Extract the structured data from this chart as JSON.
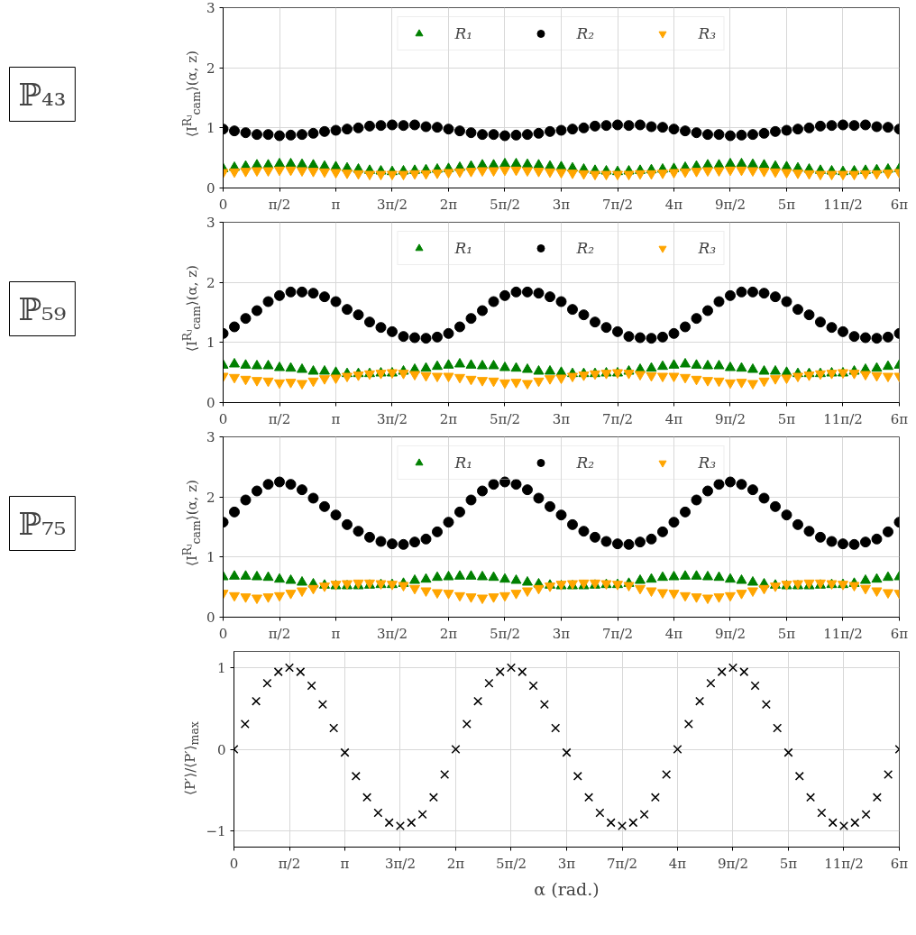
{
  "chart_data": [
    {
      "type": "scatter",
      "annotations": [
        "ℙ₄₃"
      ],
      "ylabel": "⟨I$^{Rⱼ}$$_{cam}$⟩(α, z)",
      "grid": true,
      "legend": "top",
      "xlim": [
        0,
        18.85
      ],
      "ylim": [
        0,
        3
      ],
      "yticks": [
        0,
        1,
        2,
        3
      ],
      "xticks": [
        0,
        {
          "value": 1.571,
          "label": "π/2"
        },
        {
          "value": 3.142,
          "label": "π"
        },
        {
          "value": 4.712,
          "label": "3π/2"
        },
        {
          "value": 6.283,
          "label": "2π"
        },
        {
          "value": 7.854,
          "label": "5π/2"
        },
        {
          "value": 9.425,
          "label": "3π"
        },
        {
          "value": 10.996,
          "label": "7π/2"
        },
        {
          "value": 12.566,
          "label": "4π"
        },
        {
          "value": 14.137,
          "label": "9π/2"
        },
        {
          "value": 15.708,
          "label": "5π"
        },
        {
          "value": 17.279,
          "label": "11π/2"
        },
        {
          "value": 18.85,
          "label": "6π"
        }
      ],
      "x": [
        0,
        0.314,
        0.628,
        0.942,
        1.257,
        1.571,
        1.885,
        2.199,
        2.513,
        2.827,
        3.142,
        3.456,
        3.77,
        4.084,
        4.398,
        4.712,
        5.027,
        5.341,
        5.655,
        5.969,
        6.283,
        6.597,
        6.912,
        7.226,
        7.54,
        7.854,
        8.168,
        8.482,
        8.796,
        9.111,
        9.425,
        9.739,
        10.053,
        10.367,
        10.681,
        10.996,
        11.31,
        11.624,
        11.938,
        12.252,
        12.566,
        12.881,
        13.195,
        13.509,
        13.823,
        14.137,
        14.451,
        14.765,
        15.08,
        15.394,
        15.708,
        16.022,
        16.336,
        16.65,
        16.965,
        17.279,
        17.593,
        17.907,
        18.221,
        18.535,
        18.85
      ],
      "series": [
        {
          "name": "R₁",
          "color": "#008000",
          "marker": "triangle",
          "values": [
            0.32,
            0.34,
            0.36,
            0.38,
            0.38,
            0.4,
            0.4,
            0.39,
            0.38,
            0.36,
            0.35,
            0.33,
            0.31,
            0.29,
            0.28,
            0.27,
            0.28,
            0.29,
            0.3,
            0.31,
            0.32,
            0.34,
            0.36,
            0.38,
            0.38,
            0.4,
            0.4,
            0.39,
            0.38,
            0.36,
            0.35,
            0.33,
            0.31,
            0.29,
            0.28,
            0.27,
            0.28,
            0.29,
            0.3,
            0.31,
            0.32,
            0.34,
            0.36,
            0.38,
            0.38,
            0.4,
            0.4,
            0.39,
            0.38,
            0.36,
            0.35,
            0.33,
            0.31,
            0.29,
            0.28,
            0.27,
            0.28,
            0.29,
            0.3,
            0.31,
            0.32
          ]
        },
        {
          "name": "R₂",
          "color": "#000000",
          "marker": "circle",
          "values": [
            0.98,
            0.95,
            0.92,
            0.89,
            0.89,
            0.87,
            0.88,
            0.89,
            0.91,
            0.94,
            0.96,
            0.98,
            1.0,
            1.03,
            1.04,
            1.05,
            1.04,
            1.05,
            1.02,
            1.01,
            0.98,
            0.95,
            0.92,
            0.89,
            0.89,
            0.87,
            0.88,
            0.89,
            0.91,
            0.94,
            0.96,
            0.98,
            1.0,
            1.03,
            1.04,
            1.05,
            1.04,
            1.05,
            1.02,
            1.01,
            0.98,
            0.95,
            0.92,
            0.89,
            0.89,
            0.87,
            0.88,
            0.89,
            0.91,
            0.94,
            0.96,
            0.98,
            1.0,
            1.03,
            1.04,
            1.05,
            1.04,
            1.05,
            1.02,
            1.01,
            0.98
          ]
        },
        {
          "name": "R₃",
          "color": "#ffa500",
          "values": [
            0.26,
            0.27,
            0.28,
            0.29,
            0.29,
            0.3,
            0.3,
            0.29,
            0.28,
            0.27,
            0.26,
            0.25,
            0.24,
            0.23,
            0.23,
            0.23,
            0.23,
            0.24,
            0.24,
            0.25,
            0.26,
            0.27,
            0.28,
            0.29,
            0.29,
            0.3,
            0.3,
            0.29,
            0.28,
            0.27,
            0.26,
            0.25,
            0.24,
            0.23,
            0.23,
            0.23,
            0.23,
            0.24,
            0.24,
            0.25,
            0.26,
            0.27,
            0.28,
            0.29,
            0.29,
            0.3,
            0.3,
            0.29,
            0.28,
            0.27,
            0.26,
            0.25,
            0.24,
            0.23,
            0.23,
            0.23,
            0.23,
            0.24,
            0.24,
            0.25,
            0.26
          ]
        }
      ]
    },
    {
      "type": "scatter",
      "annotations": [
        "ℙ₅₉"
      ],
      "ylabel": "⟨I$^{Rⱼ}$$_{cam}$⟩(α, z)",
      "grid": true,
      "legend": "top",
      "xlim": [
        0,
        18.85
      ],
      "ylim": [
        0,
        3
      ],
      "yticks": [
        0,
        1,
        2,
        3
      ],
      "xticks": [
        0,
        {
          "value": 1.571,
          "label": "π/2"
        },
        {
          "value": 3.142,
          "label": "π"
        },
        {
          "value": 4.712,
          "label": "3π/2"
        },
        {
          "value": 6.283,
          "label": "2π"
        },
        {
          "value": 7.854,
          "label": "5π/2"
        },
        {
          "value": 9.425,
          "label": "3π"
        },
        {
          "value": 10.996,
          "label": "7π/2"
        },
        {
          "value": 12.566,
          "label": "4π"
        },
        {
          "value": 14.137,
          "label": "9π/2"
        },
        {
          "value": 15.708,
          "label": "5π"
        },
        {
          "value": 17.279,
          "label": "11π/2"
        },
        {
          "value": 18.85,
          "label": "6π"
        }
      ],
      "x": [
        0,
        0.314,
        0.628,
        0.942,
        1.257,
        1.571,
        1.885,
        2.199,
        2.513,
        2.827,
        3.142,
        3.456,
        3.77,
        4.084,
        4.398,
        4.712,
        5.027,
        5.341,
        5.655,
        5.969,
        6.283,
        6.597,
        6.912,
        7.226,
        7.54,
        7.854,
        8.168,
        8.482,
        8.796,
        9.111,
        9.425,
        9.739,
        10.053,
        10.367,
        10.681,
        10.996,
        11.31,
        11.624,
        11.938,
        12.252,
        12.566,
        12.881,
        13.195,
        13.509,
        13.823,
        14.137,
        14.451,
        14.765,
        15.08,
        15.394,
        15.708,
        16.022,
        16.336,
        16.65,
        16.965,
        17.279,
        17.593,
        17.907,
        18.221,
        18.535,
        18.85
      ],
      "series": [
        {
          "name": "R₁",
          "color": "#008000",
          "marker": "triangle",
          "values": [
            0.62,
            0.64,
            0.62,
            0.61,
            0.61,
            0.58,
            0.57,
            0.55,
            0.52,
            0.52,
            0.5,
            0.48,
            0.48,
            0.48,
            0.49,
            0.49,
            0.52,
            0.55,
            0.57,
            0.6,
            0.62,
            0.64,
            0.62,
            0.61,
            0.61,
            0.58,
            0.57,
            0.55,
            0.52,
            0.52,
            0.5,
            0.48,
            0.48,
            0.48,
            0.49,
            0.49,
            0.52,
            0.55,
            0.57,
            0.6,
            0.62,
            0.64,
            0.62,
            0.61,
            0.61,
            0.58,
            0.57,
            0.55,
            0.52,
            0.52,
            0.5,
            0.48,
            0.48,
            0.48,
            0.49,
            0.49,
            0.52,
            0.55,
            0.57,
            0.6,
            0.62
          ]
        },
        {
          "name": "R₂",
          "color": "#000000",
          "marker": "circle",
          "values": [
            1.15,
            1.26,
            1.4,
            1.53,
            1.68,
            1.78,
            1.84,
            1.84,
            1.82,
            1.76,
            1.68,
            1.55,
            1.46,
            1.34,
            1.25,
            1.18,
            1.1,
            1.08,
            1.07,
            1.09,
            1.15,
            1.26,
            1.4,
            1.53,
            1.68,
            1.78,
            1.84,
            1.84,
            1.82,
            1.76,
            1.68,
            1.55,
            1.46,
            1.34,
            1.25,
            1.18,
            1.1,
            1.08,
            1.07,
            1.09,
            1.15,
            1.26,
            1.4,
            1.53,
            1.68,
            1.78,
            1.84,
            1.84,
            1.82,
            1.76,
            1.68,
            1.55,
            1.46,
            1.34,
            1.25,
            1.18,
            1.1,
            1.08,
            1.07,
            1.09,
            1.15
          ]
        },
        {
          "name": "R₃",
          "color": "#ffa500",
          "values": [
            0.44,
            0.42,
            0.39,
            0.37,
            0.36,
            0.33,
            0.34,
            0.32,
            0.36,
            0.4,
            0.41,
            0.44,
            0.46,
            0.48,
            0.49,
            0.5,
            0.49,
            0.47,
            0.45,
            0.44,
            0.44,
            0.42,
            0.39,
            0.37,
            0.36,
            0.33,
            0.34,
            0.32,
            0.36,
            0.4,
            0.41,
            0.44,
            0.46,
            0.48,
            0.49,
            0.5,
            0.49,
            0.47,
            0.45,
            0.44,
            0.44,
            0.42,
            0.39,
            0.37,
            0.36,
            0.33,
            0.34,
            0.32,
            0.36,
            0.4,
            0.41,
            0.44,
            0.46,
            0.48,
            0.49,
            0.5,
            0.49,
            0.47,
            0.45,
            0.44,
            0.44
          ]
        }
      ]
    },
    {
      "type": "scatter",
      "annotations": [
        "ℙ₇₅"
      ],
      "ylabel": "⟨I$^{Rⱼ}$$_{cam}$⟩(α, z)",
      "grid": true,
      "legend": "top",
      "xlim": [
        0,
        18.85
      ],
      "ylim": [
        0,
        3
      ],
      "yticks": [
        0,
        1,
        2,
        3
      ],
      "xticks": [
        0,
        {
          "value": 1.571,
          "label": "π/2"
        },
        {
          "value": 3.142,
          "label": "π"
        },
        {
          "value": 4.712,
          "label": "3π/2"
        },
        {
          "value": 6.283,
          "label": "2π"
        },
        {
          "value": 7.854,
          "label": "5π/2"
        },
        {
          "value": 9.425,
          "label": "3π"
        },
        {
          "value": 10.996,
          "label": "7π/2"
        },
        {
          "value": 12.566,
          "label": "4π"
        },
        {
          "value": 14.137,
          "label": "9π/2"
        },
        {
          "value": 15.708,
          "label": "5π"
        },
        {
          "value": 17.279,
          "label": "11π/2"
        },
        {
          "value": 18.85,
          "label": "6π"
        }
      ],
      "x": [
        0,
        0.314,
        0.628,
        0.942,
        1.257,
        1.571,
        1.885,
        2.199,
        2.513,
        2.827,
        3.142,
        3.456,
        3.77,
        4.084,
        4.398,
        4.712,
        5.027,
        5.341,
        5.655,
        5.969,
        6.283,
        6.597,
        6.912,
        7.226,
        7.54,
        7.854,
        8.168,
        8.482,
        8.796,
        9.111,
        9.425,
        9.739,
        10.053,
        10.367,
        10.681,
        10.996,
        11.31,
        11.624,
        11.938,
        12.252,
        12.566,
        12.881,
        13.195,
        13.509,
        13.823,
        14.137,
        14.451,
        14.765,
        15.08,
        15.394,
        15.708,
        16.022,
        16.336,
        16.65,
        16.965,
        17.279,
        17.593,
        17.907,
        18.221,
        18.535,
        18.85
      ],
      "series": [
        {
          "name": "R₁",
          "color": "#008000",
          "marker": "triangle",
          "values": [
            0.67,
            0.68,
            0.68,
            0.67,
            0.66,
            0.63,
            0.61,
            0.58,
            0.55,
            0.53,
            0.52,
            0.52,
            0.52,
            0.53,
            0.54,
            0.54,
            0.56,
            0.61,
            0.63,
            0.66,
            0.67,
            0.68,
            0.68,
            0.67,
            0.66,
            0.63,
            0.61,
            0.58,
            0.55,
            0.53,
            0.52,
            0.52,
            0.52,
            0.53,
            0.54,
            0.54,
            0.56,
            0.61,
            0.63,
            0.66,
            0.67,
            0.68,
            0.68,
            0.67,
            0.66,
            0.63,
            0.61,
            0.58,
            0.55,
            0.53,
            0.52,
            0.52,
            0.52,
            0.53,
            0.54,
            0.54,
            0.56,
            0.61,
            0.63,
            0.66,
            0.67
          ]
        },
        {
          "name": "R₂",
          "color": "#000000",
          "marker": "circle",
          "values": [
            1.58,
            1.75,
            1.95,
            2.1,
            2.21,
            2.25,
            2.21,
            2.12,
            1.98,
            1.84,
            1.7,
            1.54,
            1.43,
            1.33,
            1.26,
            1.22,
            1.21,
            1.25,
            1.3,
            1.42,
            1.58,
            1.75,
            1.95,
            2.1,
            2.21,
            2.25,
            2.21,
            2.12,
            1.98,
            1.84,
            1.7,
            1.54,
            1.43,
            1.33,
            1.26,
            1.22,
            1.21,
            1.25,
            1.3,
            1.42,
            1.58,
            1.75,
            1.95,
            2.1,
            2.21,
            2.25,
            2.21,
            2.12,
            1.98,
            1.84,
            1.7,
            1.54,
            1.43,
            1.33,
            1.26,
            1.22,
            1.21,
            1.25,
            1.3,
            1.42,
            1.58
          ]
        },
        {
          "name": "R₃",
          "color": "#ffa500",
          "values": [
            0.4,
            0.36,
            0.34,
            0.32,
            0.34,
            0.36,
            0.4,
            0.44,
            0.48,
            0.52,
            0.55,
            0.56,
            0.57,
            0.57,
            0.56,
            0.55,
            0.53,
            0.48,
            0.44,
            0.41,
            0.4,
            0.36,
            0.34,
            0.32,
            0.34,
            0.36,
            0.4,
            0.44,
            0.48,
            0.52,
            0.55,
            0.56,
            0.57,
            0.57,
            0.56,
            0.55,
            0.53,
            0.48,
            0.44,
            0.41,
            0.4,
            0.36,
            0.34,
            0.32,
            0.34,
            0.36,
            0.4,
            0.44,
            0.48,
            0.52,
            0.55,
            0.56,
            0.57,
            0.57,
            0.56,
            0.55,
            0.53,
            0.48,
            0.44,
            0.41,
            0.4
          ]
        }
      ]
    },
    {
      "type": "scatter",
      "ylabel": "⟨P′⟩/⟨P′⟩$_{max}$",
      "xlabel": "α (rad.)",
      "grid": true,
      "marker": "cross",
      "xlim": [
        0,
        18.85
      ],
      "ylim": [
        -1.2,
        1.2
      ],
      "yticks": [
        {
          "value": -1,
          "label": "−1"
        },
        0,
        1
      ],
      "xticks": [
        0,
        {
          "value": 1.571,
          "label": "π/2"
        },
        {
          "value": 3.142,
          "label": "π"
        },
        {
          "value": 4.712,
          "label": "3π/2"
        },
        {
          "value": 6.283,
          "label": "2π"
        },
        {
          "value": 7.854,
          "label": "5π/2"
        },
        {
          "value": 9.425,
          "label": "3π"
        },
        {
          "value": 10.996,
          "label": "7π/2"
        },
        {
          "value": 12.566,
          "label": "4π"
        },
        {
          "value": 14.137,
          "label": "9π/2"
        },
        {
          "value": 15.708,
          "label": "5π"
        },
        {
          "value": 17.279,
          "label": "11π/2"
        },
        {
          "value": 18.85,
          "label": "6π"
        }
      ],
      "x": [
        0,
        0.314,
        0.628,
        0.942,
        1.257,
        1.571,
        1.885,
        2.199,
        2.513,
        2.827,
        3.142,
        3.456,
        3.77,
        4.084,
        4.398,
        4.712,
        5.027,
        5.341,
        5.655,
        5.969,
        6.283,
        6.597,
        6.912,
        7.226,
        7.54,
        7.854,
        8.168,
        8.482,
        8.796,
        9.111,
        9.425,
        9.739,
        10.053,
        10.367,
        10.681,
        10.996,
        11.31,
        11.624,
        11.938,
        12.252,
        12.566,
        12.881,
        13.195,
        13.509,
        13.823,
        14.137,
        14.451,
        14.765,
        15.08,
        15.394,
        15.708,
        16.022,
        16.336,
        16.65,
        16.965,
        17.279,
        17.593,
        17.907,
        18.221,
        18.535,
        18.85
      ],
      "series": [
        {
          "color": "#000000",
          "values": [
            0,
            0.31,
            0.59,
            0.81,
            0.95,
            1.0,
            0.95,
            0.78,
            0.55,
            0.26,
            -0.04,
            -0.33,
            -0.59,
            -0.78,
            -0.9,
            -0.94,
            -0.9,
            -0.8,
            -0.59,
            -0.31,
            0,
            0.31,
            0.59,
            0.81,
            0.95,
            1.0,
            0.95,
            0.78,
            0.55,
            0.26,
            -0.04,
            -0.33,
            -0.59,
            -0.78,
            -0.9,
            -0.94,
            -0.9,
            -0.8,
            -0.59,
            -0.31,
            0,
            0.31,
            0.59,
            0.81,
            0.95,
            1.0,
            0.95,
            0.78,
            0.55,
            0.26,
            -0.04,
            -0.33,
            -0.59,
            -0.78,
            -0.9,
            -0.94,
            -0.9,
            -0.8,
            -0.59,
            -0.31,
            0
          ]
        }
      ]
    }
  ]
}
